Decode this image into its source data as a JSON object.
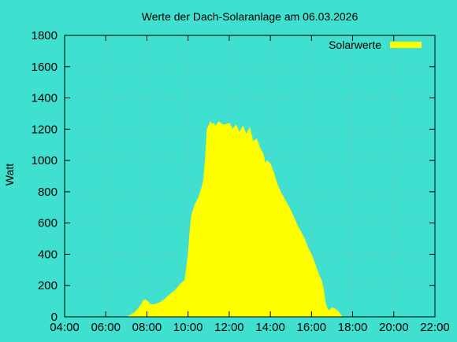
{
  "chart_data": {
    "type": "area",
    "title": "Werte der Dach-Solaranlage am 06.03.2026",
    "xlabel": "",
    "ylabel": "Watt",
    "xlim": [
      "04:00",
      "22:00"
    ],
    "ylim": [
      0,
      1800
    ],
    "x_ticks": [
      "04:00",
      "06:00",
      "08:00",
      "10:00",
      "12:00",
      "14:00",
      "16:00",
      "18:00",
      "20:00",
      "22:00"
    ],
    "y_ticks": [
      0,
      200,
      400,
      600,
      800,
      1000,
      1200,
      1400,
      1600,
      1800
    ],
    "grid": true,
    "legend_position": "top-right",
    "series": [
      {
        "name": "Solarwerte",
        "color": "#ffff00",
        "x": [
          "07:05",
          "07:15",
          "07:25",
          "07:35",
          "07:45",
          "07:50",
          "07:55",
          "08:05",
          "08:10",
          "08:20",
          "08:30",
          "08:40",
          "08:50",
          "09:00",
          "09:10",
          "09:20",
          "09:30",
          "09:35",
          "09:45",
          "09:50",
          "09:55",
          "10:00",
          "10:05",
          "10:10",
          "10:20",
          "10:30",
          "10:40",
          "10:45",
          "10:50",
          "10:55",
          "11:00",
          "11:05",
          "11:10",
          "11:15",
          "11:20",
          "11:30",
          "11:40",
          "11:50",
          "12:00",
          "12:10",
          "12:20",
          "12:30",
          "12:40",
          "12:50",
          "13:00",
          "13:10",
          "13:20",
          "13:30",
          "13:40",
          "13:45",
          "13:50",
          "14:00",
          "14:10",
          "14:20",
          "14:30",
          "14:40",
          "14:50",
          "15:00",
          "15:10",
          "15:20",
          "15:30",
          "15:40",
          "15:50",
          "16:00",
          "16:10",
          "16:20",
          "16:30",
          "16:35",
          "16:40",
          "16:45",
          "16:50",
          "17:00",
          "17:10",
          "17:20",
          "17:25",
          "17:30"
        ],
        "values": [
          5,
          15,
          30,
          55,
          85,
          105,
          110,
          95,
          80,
          78,
          85,
          95,
          110,
          130,
          150,
          165,
          190,
          205,
          225,
          230,
          310,
          400,
          540,
          650,
          720,
          760,
          830,
          880,
          1000,
          1200,
          1220,
          1250,
          1230,
          1240,
          1220,
          1250,
          1230,
          1230,
          1240,
          1200,
          1230,
          1180,
          1220,
          1170,
          1210,
          1120,
          1140,
          1080,
          1040,
          980,
          1000,
          980,
          920,
          850,
          800,
          760,
          720,
          680,
          630,
          580,
          540,
          500,
          440,
          400,
          340,
          280,
          230,
          180,
          100,
          60,
          40,
          60,
          50,
          30,
          15,
          0
        ]
      }
    ]
  }
}
